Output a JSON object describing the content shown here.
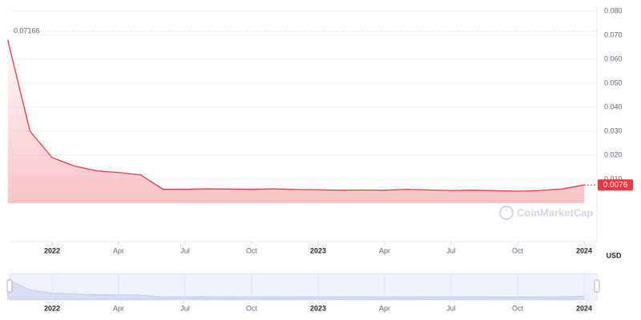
{
  "chart_data": {
    "type": "line",
    "x": [
      "2021-11",
      "2021-12",
      "2022-01",
      "2022-02",
      "2022-03",
      "2022-04",
      "2022-05",
      "2022-06",
      "2022-07",
      "2022-08",
      "2022-09",
      "2022-10",
      "2022-11",
      "2022-12",
      "2023-01",
      "2023-02",
      "2023-03",
      "2023-04",
      "2023-05",
      "2023-06",
      "2023-07",
      "2023-08",
      "2023-09",
      "2023-10",
      "2023-11",
      "2023-12",
      "2024-01"
    ],
    "values": [
      0.068,
      0.03,
      0.019,
      0.0155,
      0.0135,
      0.0128,
      0.0118,
      0.0058,
      0.0058,
      0.006,
      0.0059,
      0.0058,
      0.006,
      0.0057,
      0.0056,
      0.0054,
      0.0055,
      0.0054,
      0.0058,
      0.0055,
      0.0053,
      0.0054,
      0.0052,
      0.005,
      0.0053,
      0.0059,
      0.0076
    ],
    "color": "#ea3943",
    "ylim": [
      0,
      0.08
    ],
    "yticks": [
      {
        "value": 0.01,
        "label": "0.010"
      },
      {
        "value": 0.02,
        "label": "0.020"
      },
      {
        "value": 0.03,
        "label": "0.030"
      },
      {
        "value": 0.04,
        "label": "0.040"
      },
      {
        "value": 0.05,
        "label": "0.050"
      },
      {
        "value": 0.06,
        "label": "0.060"
      },
      {
        "value": 0.07,
        "label": "0.070"
      },
      {
        "value": 0.08,
        "label": "0.080"
      }
    ],
    "xticks": [
      {
        "value": "2022-01",
        "label": "2022"
      },
      {
        "value": "2022-04",
        "label": "Apr"
      },
      {
        "value": "2022-07",
        "label": "Jul"
      },
      {
        "value": "2022-10",
        "label": "Oct"
      },
      {
        "value": "2023-01",
        "label": "2023"
      },
      {
        "value": "2023-04",
        "label": "Apr"
      },
      {
        "value": "2023-07",
        "label": "Jul"
      },
      {
        "value": "2023-10",
        "label": "Oct"
      },
      {
        "value": "2024-01",
        "label": "2024"
      }
    ],
    "max_price": 0.07166,
    "last_price": 0.0076,
    "currency": "USD",
    "watermark": "CoinMarketCap",
    "grid": true
  }
}
